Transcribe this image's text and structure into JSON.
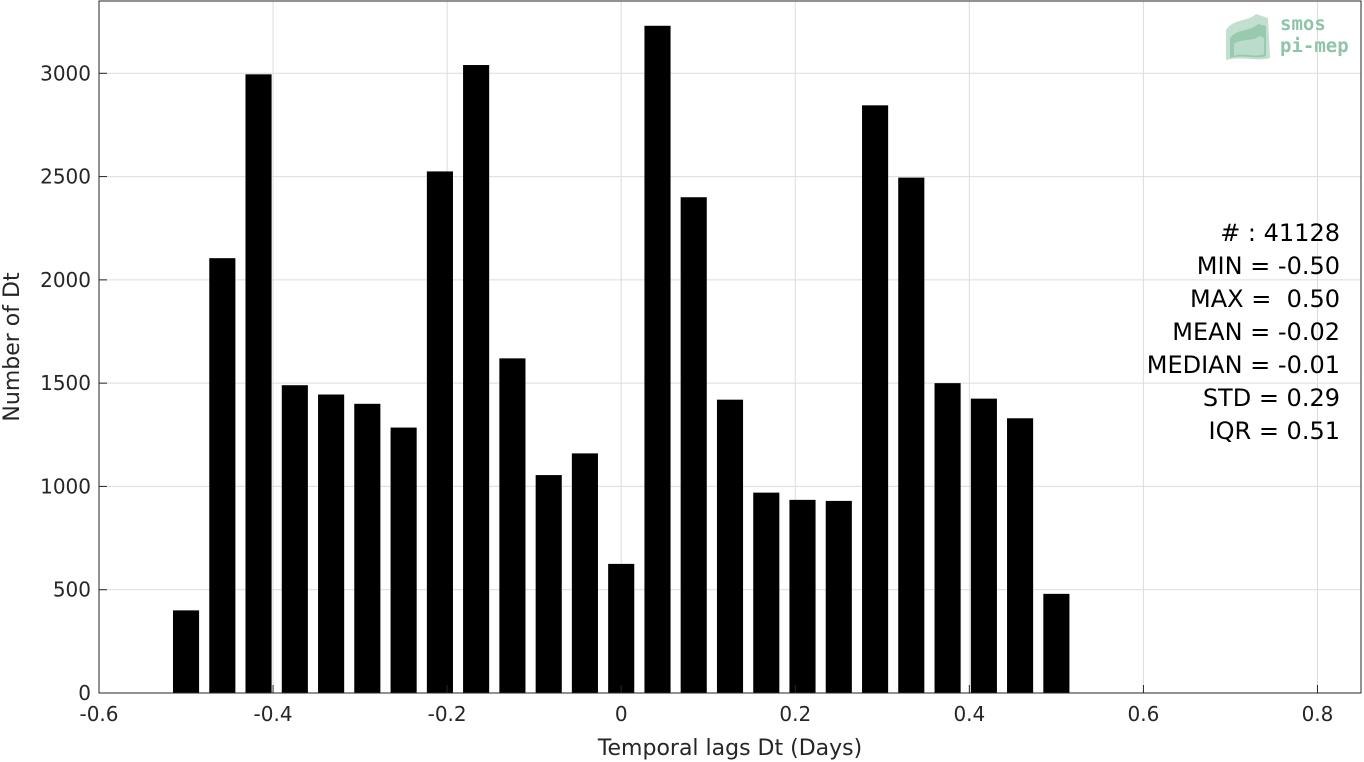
{
  "chart_data": {
    "type": "bar",
    "xlabel": "Temporal lags Dt (Days)",
    "ylabel": "Number of Dt",
    "xlim": [
      -0.6,
      0.85
    ],
    "ylim": [
      0,
      3350
    ],
    "xticks": [
      -0.6,
      -0.4,
      -0.2,
      0,
      0.2,
      0.4,
      0.6,
      0.8
    ],
    "xtick_labels": [
      "-0.6",
      "-0.4",
      "-0.2",
      "0",
      "0.2",
      "0.4",
      "0.6",
      "0.8"
    ],
    "yticks": [
      0,
      500,
      1000,
      1500,
      2000,
      2500,
      3000
    ],
    "ytick_labels": [
      "0",
      "500",
      "1000",
      "1500",
      "2000",
      "2500",
      "3000"
    ],
    "grid": true,
    "bar_color": "#000000",
    "bar_width": 0.03,
    "x": [
      -0.5,
      -0.4583,
      -0.4167,
      -0.375,
      -0.3333,
      -0.2917,
      -0.25,
      -0.2083,
      -0.1667,
      -0.125,
      -0.0833,
      -0.0417,
      0.0,
      0.0417,
      0.0833,
      0.125,
      0.1667,
      0.2083,
      0.25,
      0.2917,
      0.3333,
      0.375,
      0.4167,
      0.4583,
      0.5
    ],
    "values": [
      400,
      2105,
      2995,
      1490,
      1445,
      1400,
      1285,
      2525,
      3040,
      1620,
      1055,
      1160,
      625,
      3230,
      2400,
      1420,
      970,
      935,
      930,
      2845,
      2495,
      1500,
      1425,
      1330,
      480
    ],
    "stats": [
      "# : 41128",
      "MIN = -0.50",
      "MAX =  0.50",
      "MEAN = -0.02",
      "MEDIAN = -0.01",
      "STD = 0.29",
      "IQR = 0.51"
    ]
  },
  "logo": {
    "line1": "smos",
    "line2": "pi-mep",
    "color": "#8fc4a8"
  }
}
